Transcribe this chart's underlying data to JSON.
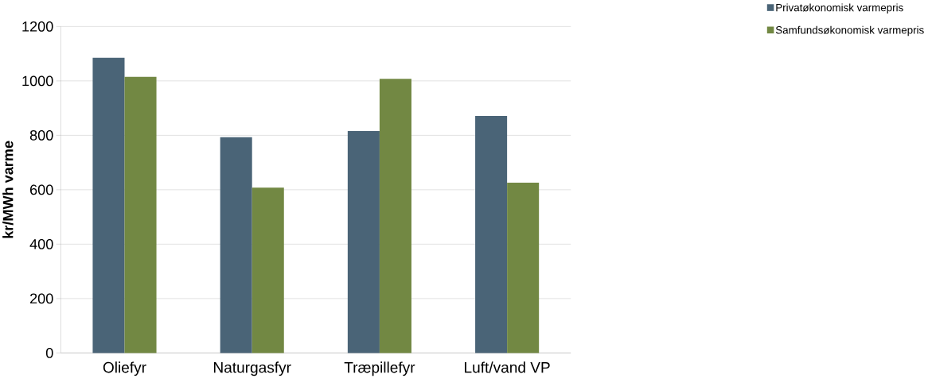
{
  "chart_data": {
    "type": "bar",
    "ylabel": "kr/MWh varme",
    "categories": [
      "Oliefyr",
      "Naturgasfyr",
      "Træpillefyr",
      "Luft/vand VP"
    ],
    "series": [
      {
        "name": "Privatøkonomisk varmepris",
        "color": "#4a6477",
        "values": [
          1085,
          793,
          816,
          871
        ]
      },
      {
        "name": "Samfundsøkonomisk varmepris",
        "color": "#728843",
        "values": [
          1015,
          608,
          1008,
          626
        ]
      }
    ],
    "ylim": [
      0,
      1200
    ],
    "yticks": [
      0,
      200,
      400,
      600,
      800,
      1000,
      1200
    ],
    "grid": "y",
    "legend": "top right"
  }
}
